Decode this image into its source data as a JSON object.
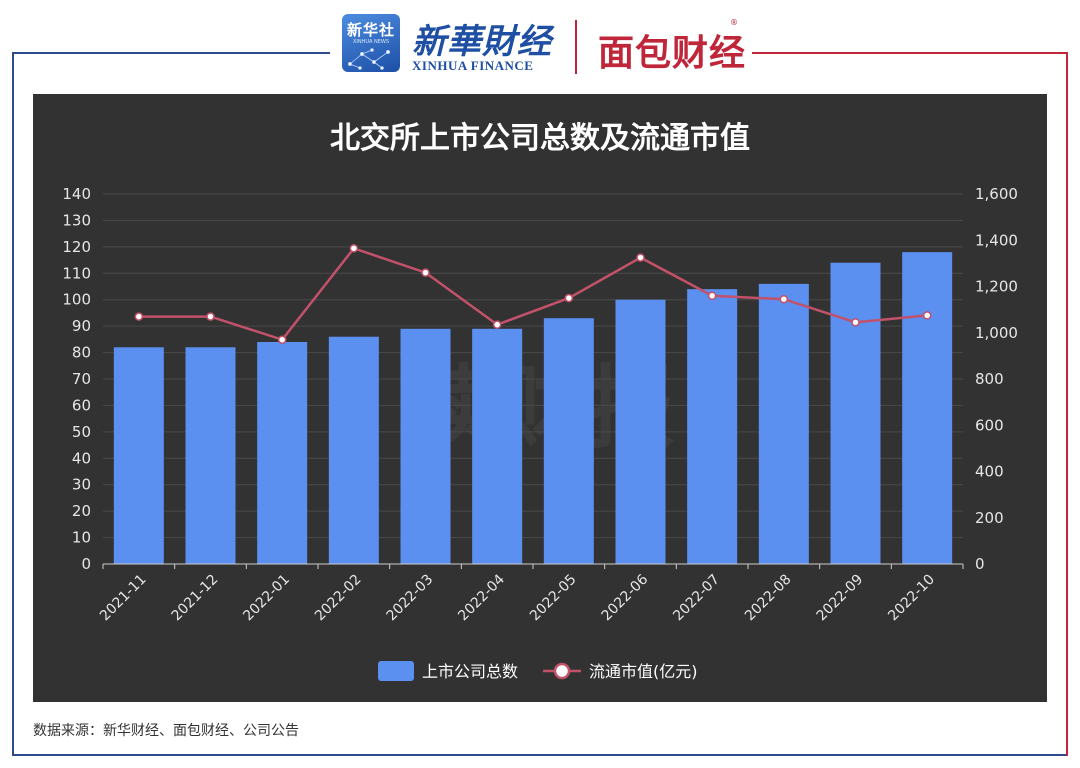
{
  "header": {
    "logo_cn": "新华社",
    "logo_en": "XINHUA NEWS",
    "brand1_cn": "新華財经",
    "brand1_en": "XINHUA FINANCE",
    "brand2": "面包财经",
    "brand2_mark": "®"
  },
  "watermark": "读财报",
  "source_text": "数据来源：新华财经、面包财经、公司公告",
  "colors": {
    "background": "#323232",
    "bar": "#5b8ff0",
    "line": "#c2516a",
    "frame_left": "#2f4a8c",
    "frame_right": "#c0263a"
  },
  "chart_data": {
    "type": "bar",
    "title": "北交所上市公司总数及流通市值",
    "categories": [
      "2021-11",
      "2021-12",
      "2022-01",
      "2022-02",
      "2022-03",
      "2022-04",
      "2022-05",
      "2022-06",
      "2022-07",
      "2022-08",
      "2022-09",
      "2022-10"
    ],
    "series": [
      {
        "name": "上市公司总数",
        "type": "bar",
        "axis": "left",
        "values": [
          82,
          82,
          84,
          86,
          89,
          89,
          93,
          100,
          104,
          106,
          114,
          118
        ]
      },
      {
        "name": "流通市值(亿元)",
        "type": "line",
        "axis": "right",
        "values": [
          1070,
          1070,
          970,
          1365,
          1260,
          1035,
          1150,
          1325,
          1160,
          1145,
          1045,
          1075
        ]
      }
    ],
    "y_left": {
      "min": 0,
      "max": 140,
      "ticks": [
        "0",
        "10",
        "20",
        "30",
        "40",
        "50",
        "60",
        "70",
        "80",
        "90",
        "100",
        "110",
        "120",
        "130",
        "140"
      ]
    },
    "y_right": {
      "min": 0,
      "max": 1600,
      "ticks": [
        "0",
        "200",
        "400",
        "600",
        "800",
        "1,000",
        "1,200",
        "1,400",
        "1,600"
      ]
    },
    "grid": true,
    "legend_position": "bottom-center"
  }
}
